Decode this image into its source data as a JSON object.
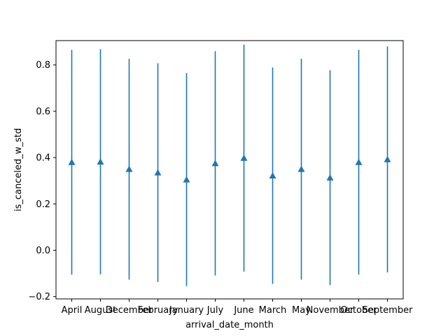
{
  "chart_data": {
    "type": "scatter",
    "xlabel": "arrival_date_month",
    "ylabel": "is_canceled_w_std",
    "categories": [
      "April",
      "August",
      "December",
      "February",
      "January",
      "July",
      "June",
      "March",
      "May",
      "November",
      "October",
      "September"
    ],
    "series": [
      {
        "values": [
          0.38,
          0.382,
          0.35,
          0.335,
          0.305,
          0.375,
          0.398,
          0.322,
          0.35,
          0.313,
          0.38,
          0.392
        ],
        "std": [
          0.485,
          0.486,
          0.477,
          0.472,
          0.46,
          0.484,
          0.49,
          0.467,
          0.477,
          0.464,
          0.485,
          0.488
        ],
        "marker": "triangle-up",
        "color": "#1f77b4"
      }
    ],
    "ylim": [
      -0.21,
      0.905
    ],
    "yticks": [
      -0.2,
      0.0,
      0.2,
      0.4,
      0.6,
      0.8
    ],
    "ytick_labels": [
      "−0.2",
      "0.0",
      "0.2",
      "0.4",
      "0.6",
      "0.8"
    ],
    "grid": false,
    "legend": "none"
  }
}
